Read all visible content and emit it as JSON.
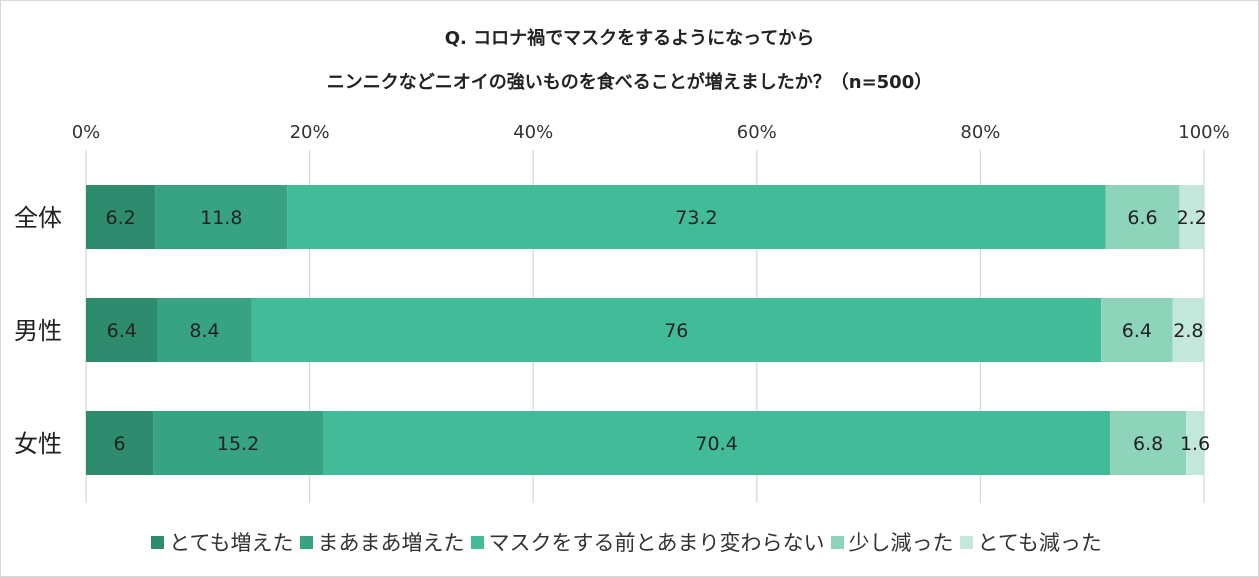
{
  "chart_data": {
    "type": "bar",
    "orientation": "horizontal",
    "stacked": true,
    "percent": true,
    "title": "Q.  コロナ禍でマスクをするようになってから",
    "subtitle": "ニンニクなどニオイの強いものを食べることが増えましたか？（n=500）",
    "categories": [
      "全体",
      "男性",
      "女性"
    ],
    "series": [
      {
        "name": "とても増えた",
        "values": [
          6.2,
          6.4,
          6
        ],
        "color": "#2e8b6e"
      },
      {
        "name": "まあまあ増えた",
        "values": [
          11.8,
          8.4,
          15.2
        ],
        "color": "#37a383"
      },
      {
        "name": "マスクをする前とあまり変わらない",
        "values": [
          73.2,
          76,
          70.4
        ],
        "color": "#42bb98"
      },
      {
        "name": "少し減った",
        "values": [
          6.6,
          6.4,
          6.8
        ],
        "color": "#8dd4bb"
      },
      {
        "name": "とても減った",
        "values": [
          2.2,
          2.8,
          1.6
        ],
        "color": "#c3e8db"
      }
    ],
    "xlim": [
      0,
      100
    ],
    "xticks": [
      "0%",
      "20%",
      "40%",
      "60%",
      "80%",
      "100%"
    ],
    "grid": true,
    "legend_position": "bottom"
  }
}
